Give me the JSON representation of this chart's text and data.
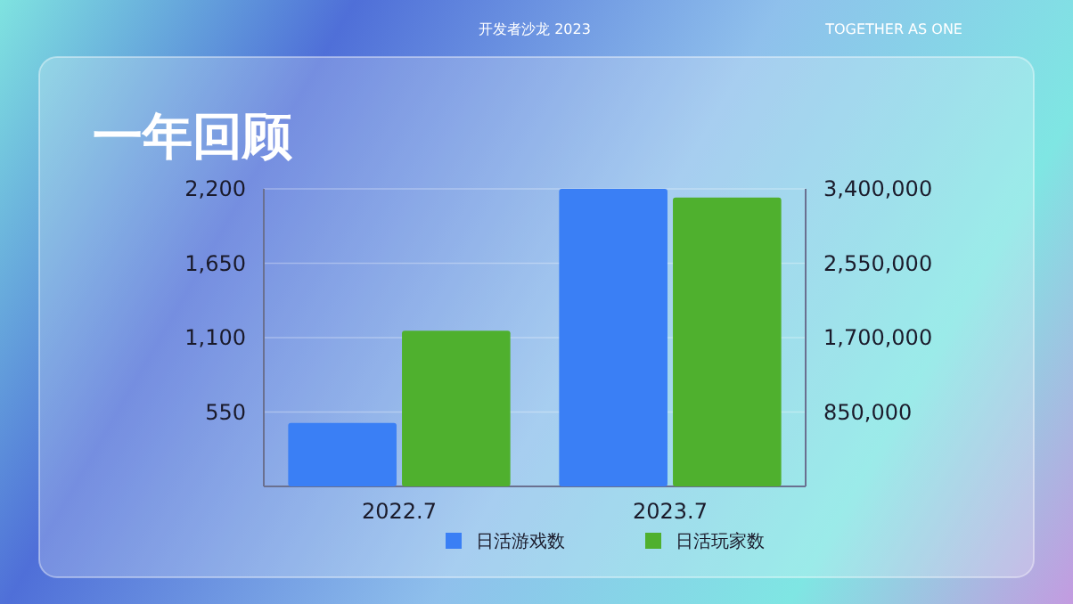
{
  "chart_data": {
    "type": "bar",
    "title": "一年回顾",
    "categories": [
      "2022.7",
      "2023.7"
    ],
    "series": [
      {
        "name": "日活游戏数",
        "color": "#3a7ff5",
        "values": [
          470,
          2200
        ]
      },
      {
        "name": "日活玩家数",
        "color": "#4fb02e",
        "values": [
          1780000,
          3300000
        ],
        "axis": "y2"
      }
    ],
    "ylim": [
      0,
      2200
    ],
    "yticks": [
      {
        "value": 0,
        "label": null
      },
      550,
      {
        "value": 1100,
        "label": "1,100"
      },
      {
        "value": 1650,
        "label": "1,650"
      },
      {
        "value": 2200,
        "label": "2,200"
      }
    ],
    "y2lim": [
      0,
      3400000
    ],
    "y2ticks": [
      {
        "value": 0,
        "label": null
      },
      {
        "value": 850000,
        "label": "850,000"
      },
      {
        "value": 1700000,
        "label": "1,700,000"
      },
      {
        "value": 2550000,
        "label": "2,550,000"
      },
      {
        "value": 3400000,
        "label": "3,400,000"
      }
    ],
    "grid": "y",
    "legend": "bottom",
    "annotations": [
      "开发者沙龙 2023",
      "TOGETHER AS ONE"
    ]
  }
}
